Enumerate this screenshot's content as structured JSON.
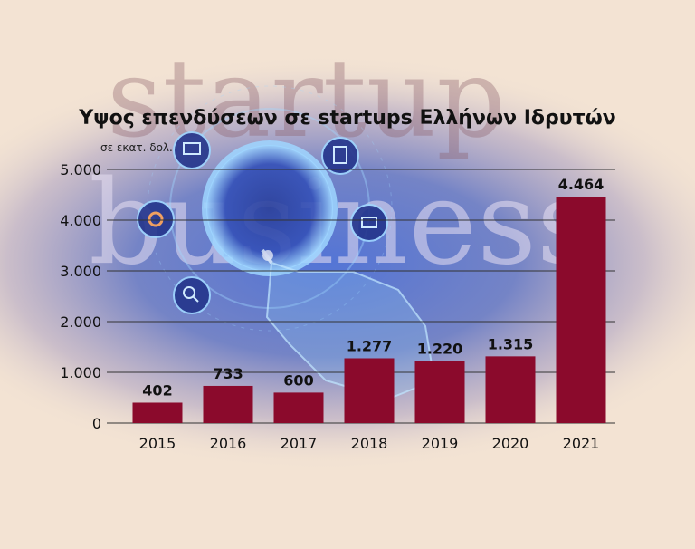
{
  "background": {
    "words": [
      "startup",
      "business"
    ],
    "colors": {
      "page": "#f3e3d3",
      "glow": "#3f63c9",
      "ring": "#9fd6ff",
      "hand": "#a8ddff"
    },
    "icons": [
      "presentation-icon",
      "clipboard-icon",
      "gear-icon",
      "briefcase-icon",
      "magnifier-icon",
      "pointing-hand-icon"
    ]
  },
  "chart_data": {
    "type": "bar",
    "title": "Υψος επενδύσεων σε startups Ελλήνων Ιδρυτών",
    "unit": "σε εκατ. δολ.",
    "categories": [
      "2015",
      "2016",
      "2017",
      "2018",
      "2019",
      "2020",
      "2021"
    ],
    "values": [
      402,
      733,
      600,
      1277,
      1220,
      1315,
      4464
    ],
    "value_labels": [
      "402",
      "733",
      "600",
      "1.277",
      "1.220",
      "1.315",
      "4.464"
    ],
    "yticks": [
      0,
      1000,
      2000,
      3000,
      4000,
      5000
    ],
    "ytick_labels": [
      "0",
      "1.000",
      "2.000",
      "3.000",
      "4.000",
      "5.000"
    ],
    "ylim": [
      0,
      5000
    ],
    "xlabel": "",
    "ylabel": "",
    "grid": true,
    "bar_color": "#8b0a2c",
    "gridline_color": "#333333"
  }
}
